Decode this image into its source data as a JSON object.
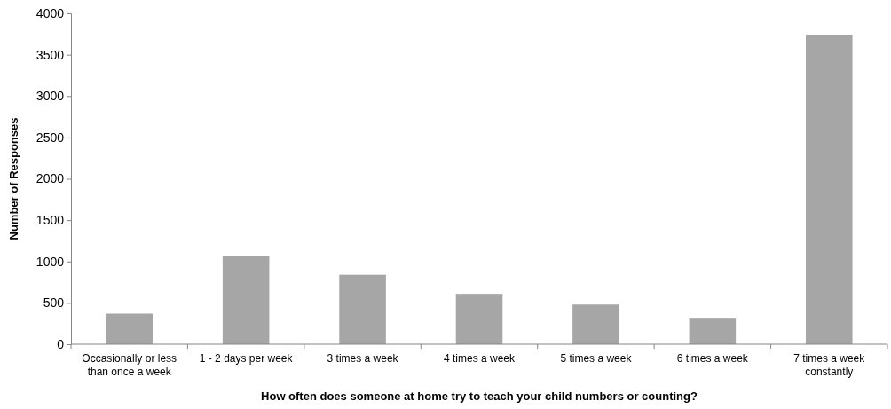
{
  "chart_data": {
    "type": "bar",
    "xlabel": "How often does someone at home try to teach your child numbers or counting?",
    "ylabel": "Number of Responses",
    "categories": [
      "Occasionally or less than once a week",
      "1 - 2 days per week",
      "3 times a week",
      "4 times a week",
      "5 times a week",
      "6 times a week",
      "7 times a week constantly"
    ],
    "values": [
      370,
      1070,
      840,
      610,
      480,
      320,
      3740
    ],
    "color": "#a6a6a6",
    "ylim": [
      0,
      4000
    ],
    "yticks": [
      0,
      500,
      1000,
      1500,
      2000,
      2500,
      3000,
      3500,
      4000
    ],
    "grid": false
  }
}
